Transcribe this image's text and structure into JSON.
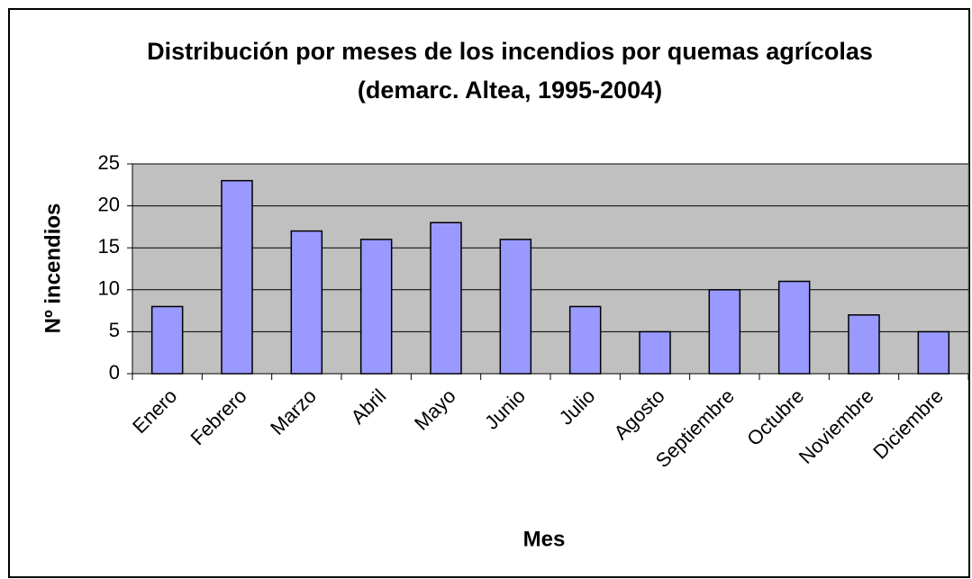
{
  "chart_data": {
    "type": "bar",
    "title": "Distribución por meses de los incendios por quemas agrícolas (demarc. Altea, 1995-2004)",
    "x_label": "Mes",
    "y_label": "Nº incendios",
    "categories": [
      "Enero",
      "Febrero",
      "Marzo",
      "Abril",
      "Mayo",
      "Junio",
      "Julio",
      "Agosto",
      "Septiembre",
      "Octubre",
      "Noviembre",
      "Diciembre"
    ],
    "values": [
      8,
      23,
      17,
      16,
      18,
      16,
      8,
      5,
      10,
      11,
      7,
      5
    ],
    "color": "#9999ff",
    "ylim": [
      0,
      25
    ],
    "yticks": [
      0,
      5,
      10,
      15,
      20,
      25
    ],
    "grid": true
  }
}
